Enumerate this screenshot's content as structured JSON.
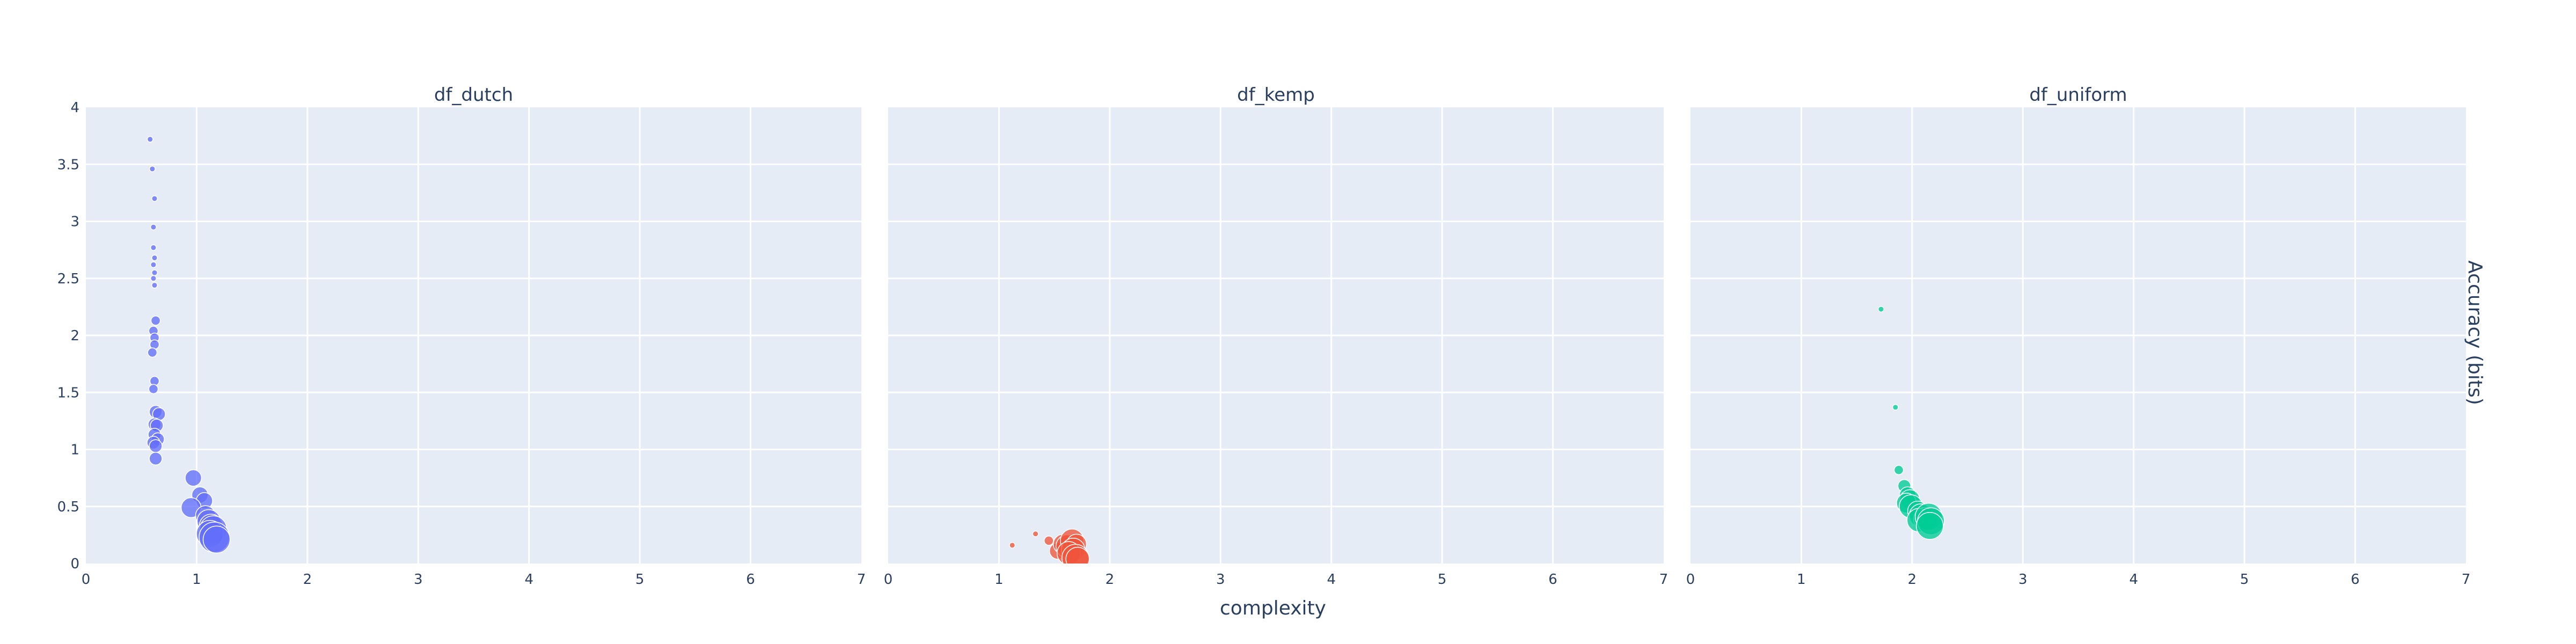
{
  "chart_data": {
    "type": "scatter",
    "xlabel": "complexity",
    "ylabel": "Accuracy (bits)",
    "xlim": [
      0,
      7
    ],
    "ylim": [
      0,
      4
    ],
    "x_ticks": [
      0,
      1,
      2,
      3,
      4,
      5,
      6,
      7
    ],
    "y_ticks": [
      0,
      0.5,
      1,
      1.5,
      2,
      2.5,
      3,
      3.5,
      4
    ],
    "y_tick_labels": [
      "0",
      "0.5",
      "1",
      "1.5",
      "2",
      "2.5",
      "3",
      "3.5",
      "4"
    ],
    "grid": true,
    "marker_size": "relative",
    "panels": [
      {
        "title": "df_dutch",
        "color": "#636EFA",
        "points": [
          {
            "x": 0.58,
            "y": 3.72,
            "s": 1
          },
          {
            "x": 0.6,
            "y": 3.46,
            "s": 1
          },
          {
            "x": 0.62,
            "y": 3.2,
            "s": 1
          },
          {
            "x": 0.61,
            "y": 2.95,
            "s": 1
          },
          {
            "x": 0.61,
            "y": 2.77,
            "s": 1
          },
          {
            "x": 0.62,
            "y": 2.68,
            "s": 1
          },
          {
            "x": 0.61,
            "y": 2.62,
            "s": 1
          },
          {
            "x": 0.62,
            "y": 2.55,
            "s": 1
          },
          {
            "x": 0.61,
            "y": 2.5,
            "s": 1
          },
          {
            "x": 0.62,
            "y": 2.44,
            "s": 1
          },
          {
            "x": 0.63,
            "y": 2.13,
            "s": 2
          },
          {
            "x": 0.61,
            "y": 2.04,
            "s": 2
          },
          {
            "x": 0.62,
            "y": 1.98,
            "s": 2
          },
          {
            "x": 0.62,
            "y": 1.92,
            "s": 2
          },
          {
            "x": 0.6,
            "y": 1.85,
            "s": 2
          },
          {
            "x": 0.62,
            "y": 1.6,
            "s": 2
          },
          {
            "x": 0.61,
            "y": 1.53,
            "s": 2
          },
          {
            "x": 0.63,
            "y": 1.33,
            "s": 3
          },
          {
            "x": 0.66,
            "y": 1.31,
            "s": 3
          },
          {
            "x": 0.62,
            "y": 1.22,
            "s": 3
          },
          {
            "x": 0.64,
            "y": 1.21,
            "s": 3
          },
          {
            "x": 0.62,
            "y": 1.13,
            "s": 3
          },
          {
            "x": 0.65,
            "y": 1.09,
            "s": 3
          },
          {
            "x": 0.61,
            "y": 1.06,
            "s": 3
          },
          {
            "x": 0.63,
            "y": 1.03,
            "s": 3
          },
          {
            "x": 0.63,
            "y": 0.92,
            "s": 3
          },
          {
            "x": 0.97,
            "y": 0.75,
            "s": 4
          },
          {
            "x": 1.03,
            "y": 0.6,
            "s": 4
          },
          {
            "x": 1.07,
            "y": 0.55,
            "s": 4
          },
          {
            "x": 0.95,
            "y": 0.49,
            "s": 5
          },
          {
            "x": 1.08,
            "y": 0.42,
            "s": 5
          },
          {
            "x": 1.11,
            "y": 0.37,
            "s": 6
          },
          {
            "x": 1.13,
            "y": 0.33,
            "s": 6
          },
          {
            "x": 1.15,
            "y": 0.3,
            "s": 7
          },
          {
            "x": 1.12,
            "y": 0.26,
            "s": 7
          },
          {
            "x": 1.16,
            "y": 0.23,
            "s": 8
          },
          {
            "x": 1.18,
            "y": 0.21,
            "s": 7
          }
        ]
      },
      {
        "title": "df_kemp",
        "color": "#EF553B",
        "points": [
          {
            "x": 1.12,
            "y": 0.16,
            "s": 1
          },
          {
            "x": 1.33,
            "y": 0.26,
            "s": 1
          },
          {
            "x": 1.45,
            "y": 0.2,
            "s": 2
          },
          {
            "x": 1.53,
            "y": 0.11,
            "s": 4
          },
          {
            "x": 1.58,
            "y": 0.17,
            "s": 5
          },
          {
            "x": 1.62,
            "y": 0.15,
            "s": 6
          },
          {
            "x": 1.66,
            "y": 0.2,
            "s": 6
          },
          {
            "x": 1.7,
            "y": 0.17,
            "s": 5
          },
          {
            "x": 1.67,
            "y": 0.12,
            "s": 6
          },
          {
            "x": 1.63,
            "y": 0.09,
            "s": 6
          },
          {
            "x": 1.69,
            "y": 0.05,
            "s": 7
          },
          {
            "x": 1.71,
            "y": 0.04,
            "s": 6
          }
        ]
      },
      {
        "title": "df_uniform",
        "color": "#00CC96",
        "points": [
          {
            "x": 1.72,
            "y": 2.23,
            "s": 1
          },
          {
            "x": 1.85,
            "y": 1.37,
            "s": 1
          },
          {
            "x": 1.88,
            "y": 0.82,
            "s": 2
          },
          {
            "x": 1.93,
            "y": 0.68,
            "s": 3
          },
          {
            "x": 1.96,
            "y": 0.6,
            "s": 4
          },
          {
            "x": 1.98,
            "y": 0.56,
            "s": 5
          },
          {
            "x": 1.95,
            "y": 0.53,
            "s": 5
          },
          {
            "x": 1.99,
            "y": 0.5,
            "s": 6
          },
          {
            "x": 2.05,
            "y": 0.46,
            "s": 5
          },
          {
            "x": 2.08,
            "y": 0.42,
            "s": 6
          },
          {
            "x": 2.12,
            "y": 0.39,
            "s": 6
          },
          {
            "x": 2.06,
            "y": 0.38,
            "s": 6
          },
          {
            "x": 2.15,
            "y": 0.41,
            "s": 7
          },
          {
            "x": 2.17,
            "y": 0.37,
            "s": 7
          },
          {
            "x": 2.16,
            "y": 0.33,
            "s": 7
          }
        ]
      }
    ]
  }
}
